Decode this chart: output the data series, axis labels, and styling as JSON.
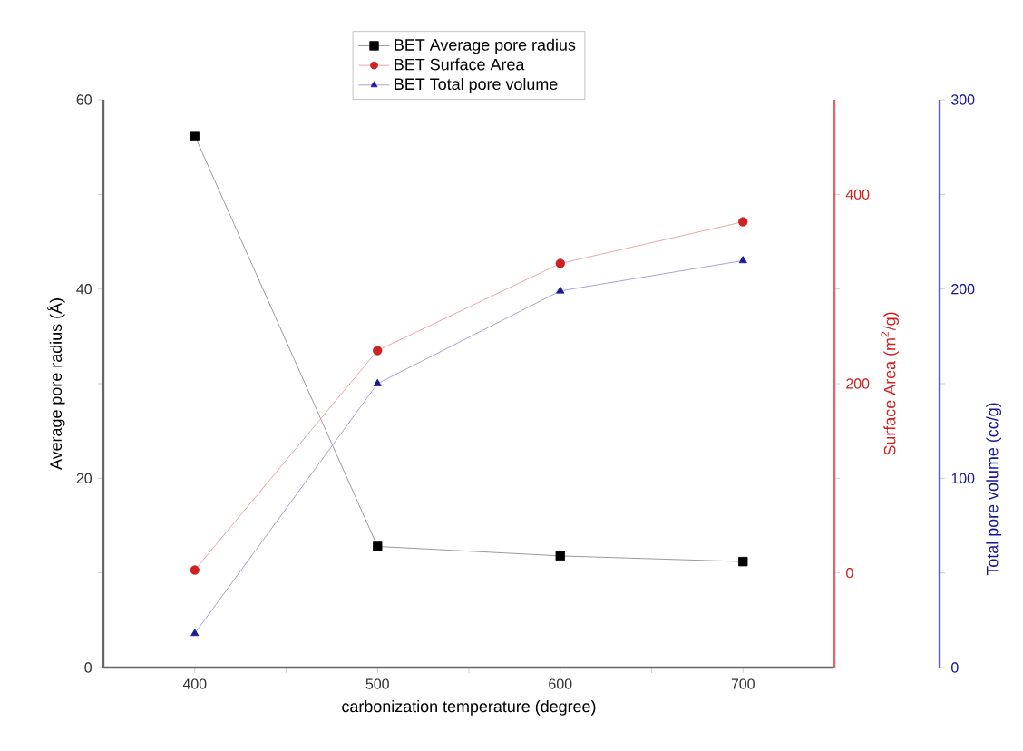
{
  "chart_data": {
    "type": "line",
    "xlabel": "carbonization temperature (degree)",
    "ylabel": "Average pore radius (Å)",
    "y2label": "Surface Area (m$^{2}$/g)",
    "y3label": "Total pore volume (cc/g)",
    "x": [
      400,
      500,
      600,
      700
    ],
    "xlim": [
      350,
      750
    ],
    "xticks": [
      400,
      {
        "value": 450,
        "label": null
      },
      500,
      {
        "value": 550,
        "label": null
      },
      600,
      {
        "value": 650,
        "label": null
      },
      700
    ],
    "ylim": [
      0,
      60
    ],
    "yticks": [
      0,
      {
        "value": 10,
        "label": null
      },
      20,
      {
        "value": 30,
        "label": null
      },
      40,
      {
        "value": 50,
        "label": null
      },
      60
    ],
    "y2lim": [
      -100,
      500
    ],
    "y2ticks": [
      0,
      {
        "value": 100,
        "label": null
      },
      200,
      {
        "value": 300,
        "label": null
      },
      400
    ],
    "y3lim": [
      0,
      300
    ],
    "y3ticks": [
      0,
      {
        "value": 50,
        "label": null
      },
      100,
      {
        "value": 150,
        "label": null
      },
      200,
      {
        "value": 250,
        "label": null
      },
      300
    ],
    "legend": "top",
    "grid": false,
    "series": [
      {
        "name": "BET Average pore radius",
        "color": "#000000",
        "axis": "y",
        "marker": "square",
        "values": [
          56.2,
          12.8,
          11.8,
          11.2
        ]
      },
      {
        "name": "BET Surface Area",
        "color": "#cc2222",
        "axis": "y2",
        "marker": "circle",
        "values": [
          3,
          235,
          327,
          371
        ]
      },
      {
        "name": "BET Total pore volume",
        "color": "#1a1a99",
        "axis": "y3",
        "marker": "triangle",
        "values": [
          18,
          150,
          199,
          215
        ]
      }
    ]
  }
}
